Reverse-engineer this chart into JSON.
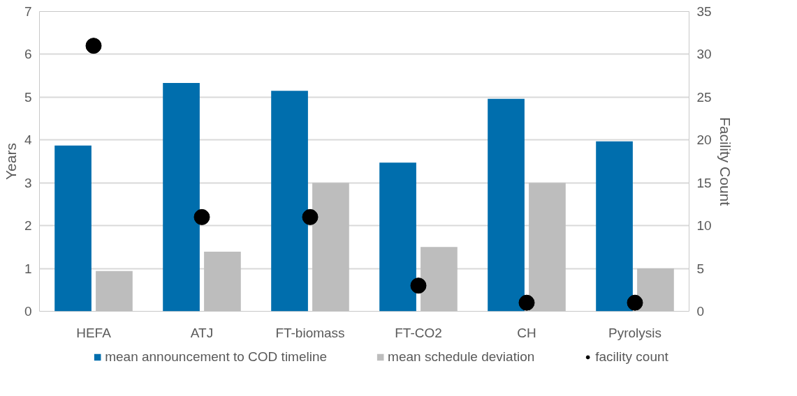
{
  "chart_data": {
    "type": "bar",
    "categories": [
      "HEFA",
      "ATJ",
      "FT-biomass",
      "FT-CO2",
      "CH",
      "Pyrolysis"
    ],
    "ylabel": "Years",
    "y2label": "Facility Count",
    "ylim": [
      0,
      7
    ],
    "yticks": [
      0,
      1,
      2,
      3,
      4,
      5,
      6,
      7
    ],
    "y2lim": [
      0,
      35
    ],
    "y2ticks": [
      0,
      5,
      10,
      15,
      20,
      25,
      30,
      35
    ],
    "grid": "y",
    "legend": "bottom",
    "series": [
      {
        "name": "mean announcement to COD timeline",
        "color": "#006ead",
        "values": [
          3.87,
          5.33,
          5.15,
          3.47,
          4.96,
          3.97
        ]
      },
      {
        "name": "mean schedule deviation",
        "color": "#bdbdbd",
        "values": [
          0.94,
          1.39,
          3.0,
          1.5,
          3.0,
          1.0
        ]
      },
      {
        "name": "facility count",
        "type": "scatter",
        "axis": "y2",
        "marker": "circle",
        "color": "#000000",
        "values": [
          31,
          11,
          11,
          3,
          1,
          1
        ]
      }
    ]
  }
}
